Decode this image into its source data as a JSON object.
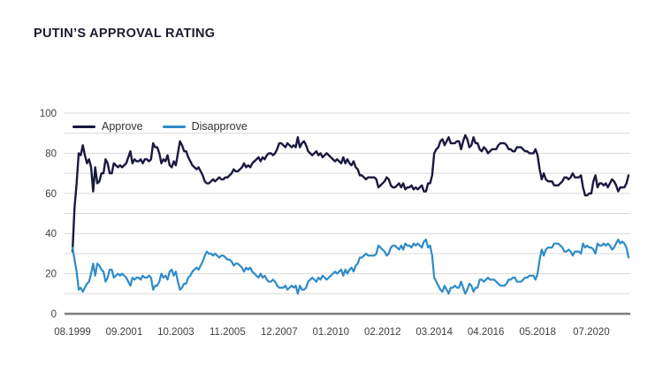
{
  "page": {
    "title": "PUTIN’S APPROVAL RATING"
  },
  "colors": {
    "background": "#ffffff",
    "title_text": "#1c1c30",
    "grid_line": "#d9d9d9",
    "axis_line": "#7d7d7d",
    "tick_text": "#404040",
    "approve_line": "#191940",
    "disapprove_line": "#2e8bc9"
  },
  "chart_data": {
    "type": "line",
    "title": "PUTIN’S APPROVAL RATING",
    "xlabel": "",
    "ylabel": "",
    "ylim": [
      0,
      100
    ],
    "grid": "horizontal",
    "grid_step": 10,
    "legend_position": "top-left",
    "y_ticks": [
      0,
      20,
      40,
      60,
      80,
      100
    ],
    "x_tick_labels": [
      "08.1999",
      "09.2001",
      "10.2003",
      "11.2005",
      "12.2007",
      "01.2010",
      "02.2012",
      "03.2014",
      "04.2016",
      "05.2018",
      "07.2020"
    ],
    "x_tick_indices": [
      0,
      25,
      50,
      75,
      100,
      125,
      150,
      175,
      200,
      225,
      251
    ],
    "x_unit": "monthly points from 08.1999",
    "series": [
      {
        "name": "Approve",
        "color": "#191940",
        "values": [
          31,
          53,
          65,
          80,
          79,
          84,
          79,
          75,
          77,
          73,
          61,
          73,
          65,
          66,
          70,
          70,
          77,
          75,
          70,
          70,
          75,
          74,
          73,
          74,
          73,
          74,
          75,
          78,
          81,
          75,
          77,
          76,
          76,
          77,
          75,
          77,
          77,
          76,
          77,
          85,
          83,
          83,
          80,
          75,
          77,
          76,
          79,
          74,
          73,
          76,
          74,
          80,
          86,
          84,
          81,
          81,
          78,
          76,
          74,
          73,
          72,
          73,
          71,
          69,
          66,
          65,
          65,
          66,
          67,
          66,
          67,
          68,
          67,
          67,
          68,
          68,
          69,
          70,
          72,
          71,
          71,
          72,
          73,
          75,
          73,
          74,
          73,
          75,
          76,
          77,
          78,
          76,
          78,
          77,
          79,
          80,
          80,
          79,
          80,
          82,
          85,
          85,
          84,
          83,
          85,
          84,
          83,
          84,
          83,
          88,
          83,
          85,
          86,
          84,
          81,
          80,
          79,
          80,
          81,
          79,
          80,
          78,
          79,
          80,
          79,
          78,
          77,
          76,
          77,
          76,
          75,
          78,
          75,
          77,
          75,
          74,
          76,
          73,
          72,
          69,
          69,
          68,
          67,
          68,
          68,
          68,
          68,
          67,
          63,
          64,
          65,
          66,
          68,
          67,
          64,
          63,
          63,
          64,
          65,
          63,
          65,
          62,
          63,
          63,
          64,
          62,
          63,
          62,
          63,
          64,
          61,
          61,
          65,
          65,
          69,
          80,
          82,
          83,
          86,
          87,
          84,
          86,
          88,
          85,
          85,
          85,
          86,
          86,
          82,
          86,
          89,
          87,
          83,
          84,
          88,
          85,
          85,
          82,
          81,
          83,
          82,
          80,
          81,
          82,
          82,
          82,
          84,
          85,
          85,
          85,
          84,
          82,
          82,
          81,
          81,
          83,
          83,
          83,
          82,
          81,
          81,
          80,
          80,
          80,
          82,
          79,
          72,
          67,
          70,
          67,
          66,
          66,
          66,
          64,
          64,
          64,
          65,
          66,
          68,
          68,
          67,
          68,
          70,
          68,
          68,
          68,
          69,
          63,
          59,
          59,
          60,
          60,
          66,
          69,
          63,
          65,
          65,
          64,
          65,
          63,
          65,
          67,
          66,
          64,
          61,
          63,
          63,
          63,
          65,
          69
        ]
      },
      {
        "name": "Disapprove",
        "color": "#2e8bc9",
        "values": [
          33,
          27,
          21,
          12,
          13,
          11,
          13,
          15,
          16,
          20,
          25,
          19,
          25,
          24,
          22,
          21,
          16,
          18,
          22,
          22,
          18,
          19,
          20,
          19,
          20,
          19,
          18,
          16,
          14,
          18,
          17,
          18,
          18,
          17,
          19,
          18,
          18,
          19,
          18,
          12,
          14,
          14,
          16,
          20,
          18,
          19,
          17,
          21,
          22,
          19,
          21,
          16,
          12,
          13,
          15,
          15,
          18,
          19,
          21,
          22,
          23,
          22,
          24,
          26,
          29,
          31,
          30,
          30,
          29,
          30,
          29,
          28,
          29,
          29,
          28,
          27,
          27,
          26,
          24,
          25,
          25,
          24,
          23,
          21,
          23,
          22,
          23,
          21,
          20,
          19,
          18,
          20,
          18,
          19,
          17,
          16,
          16,
          17,
          16,
          14,
          13,
          13,
          13,
          14,
          12,
          13,
          14,
          13,
          14,
          10,
          14,
          12,
          12,
          13,
          16,
          17,
          18,
          17,
          16,
          18,
          17,
          19,
          18,
          17,
          18,
          19,
          20,
          21,
          20,
          21,
          22,
          19,
          22,
          20,
          22,
          23,
          21,
          24,
          25,
          28,
          28,
          29,
          30,
          29,
          29,
          29,
          29,
          30,
          34,
          33,
          32,
          31,
          29,
          30,
          33,
          34,
          34,
          33,
          32,
          34,
          32,
          35,
          34,
          34,
          33,
          35,
          34,
          35,
          34,
          33,
          36,
          37,
          33,
          34,
          29,
          18,
          16,
          14,
          12,
          11,
          14,
          12,
          10,
          13,
          13,
          14,
          13,
          13,
          16,
          13,
          10,
          12,
          15,
          14,
          11,
          13,
          13,
          17,
          17,
          16,
          17,
          18,
          17,
          17,
          17,
          16,
          15,
          14,
          14,
          14,
          15,
          17,
          17,
          18,
          18,
          16,
          16,
          16,
          17,
          18,
          18,
          19,
          19,
          19,
          17,
          20,
          27,
          32,
          29,
          32,
          33,
          33,
          33,
          35,
          35,
          35,
          34,
          33,
          31,
          31,
          32,
          31,
          29,
          31,
          31,
          31,
          30,
          35,
          33,
          34,
          33,
          33,
          32,
          30,
          35,
          34,
          34,
          35,
          34,
          35,
          34,
          32,
          33,
          35,
          37,
          35,
          36,
          35,
          33,
          28
        ]
      }
    ]
  }
}
